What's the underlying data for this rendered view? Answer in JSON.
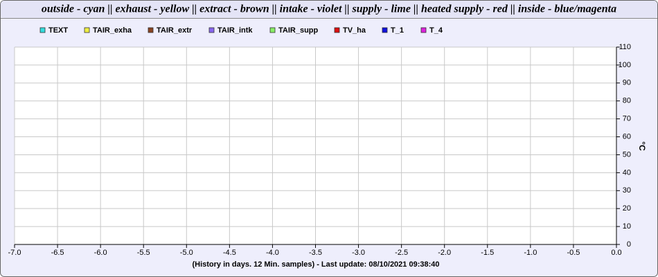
{
  "chart_data": {
    "type": "line",
    "title": "outside - cyan || exhaust - yellow || extract - brown || intake - violet || supply - lime || heated supply - red || inside - blue/magenta",
    "x_label": "(History in days. 12 Min. samples) - Last update: 08/10/2021 09:38:40",
    "y_label": "°C",
    "x": [],
    "series": [
      {
        "name": "TEXT",
        "color": "#33dddd",
        "values": []
      },
      {
        "name": "TAIR_exha",
        "color": "#eeee44",
        "values": []
      },
      {
        "name": "TAIR_extr",
        "color": "#884422",
        "values": []
      },
      {
        "name": "TAIR_intk",
        "color": "#8866ee",
        "values": []
      },
      {
        "name": "TAIR_supp",
        "color": "#88ee66",
        "values": []
      },
      {
        "name": "TV_ha",
        "color": "#dd1111",
        "values": []
      },
      {
        "name": "T_1",
        "color": "#1111dd",
        "values": []
      },
      {
        "name": "T_4",
        "color": "#dd22dd",
        "values": []
      }
    ],
    "xlim": [
      -7,
      0
    ],
    "xticks": [
      {
        "value": -7,
        "label": "-7.0"
      },
      -6.5,
      {
        "value": -6,
        "label": "-6.0"
      },
      -5.5,
      {
        "value": -5,
        "label": "-5.0"
      },
      -4.5,
      {
        "value": -4,
        "label": "-4.0"
      },
      -3.5,
      {
        "value": -3,
        "label": "-3.0"
      },
      -2.5,
      {
        "value": -2,
        "label": "-2.0"
      },
      -1.5,
      {
        "value": -1,
        "label": "-1.0"
      },
      -0.5,
      {
        "value": 0,
        "label": "0.0"
      }
    ],
    "ylim": [
      0,
      110
    ],
    "yticks": [
      0,
      10,
      20,
      30,
      40,
      50,
      60,
      70,
      80,
      90,
      100,
      110
    ],
    "grid": true
  }
}
